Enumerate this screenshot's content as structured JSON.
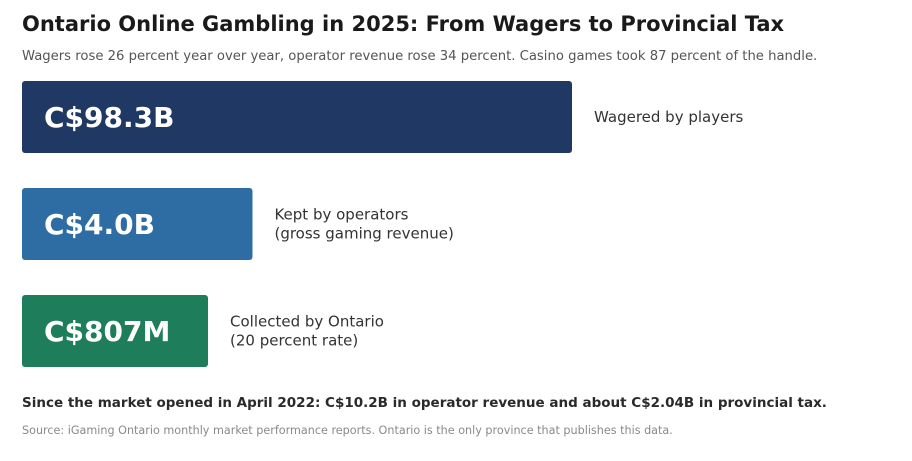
{
  "header": {
    "title": "Ontario Online Gambling in 2025: From Wagers to Provincial Tax",
    "subtitle": "Wagers rose 26 percent year over year, operator revenue rose 34 percent. Casino games took 87 percent of the handle."
  },
  "chart_data": {
    "type": "bar",
    "orientation": "horizontal",
    "unit": "C$ billions",
    "categories": [
      "Wagered by players",
      "Kept by operators (gross gaming revenue)",
      "Collected by Ontario (20 percent rate)"
    ],
    "values": [
      98.3,
      4.0,
      0.807
    ],
    "value_labels": [
      "C$98.3B",
      "C$4.0B",
      "C$807M"
    ],
    "label_lines": [
      [
        "Wagered by players"
      ],
      [
        "Kept by operators",
        "(gross gaming revenue)"
      ],
      [
        "Collected by Ontario",
        "(20 percent rate)"
      ]
    ],
    "colors": [
      "#1f3864",
      "#2e6da4",
      "#1e7e5b"
    ],
    "scale": "non-linear (illustrative widths)",
    "grid": false,
    "legend": "none"
  },
  "footer": {
    "note": "Since the market opened in April 2022: C$10.2B in operator revenue and about C$2.04B in provincial tax.",
    "source": "Source: iGaming Ontario monthly market performance reports. Ontario is the only province that publishes this data."
  }
}
